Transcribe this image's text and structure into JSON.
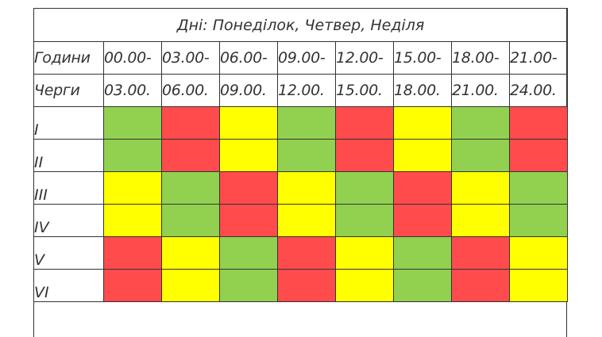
{
  "title": "Дні: Понеділок, Четвер, Неділя",
  "header": {
    "hours_label": "Години",
    "queues_label": "Черги",
    "slot_starts": [
      "00.00-",
      "03.00-",
      "06.00-",
      "09.00-",
      "12.00-",
      "15.00-",
      "18.00-",
      "21.00-"
    ],
    "slot_ends": [
      "03.00.",
      "06.00.",
      "09.00.",
      "12.00.",
      "15.00.",
      "18.00.",
      "21.00.",
      "24.00."
    ]
  },
  "colors": {
    "green": "#92d050",
    "red": "#ff4b4b",
    "yellow": "#ffff00"
  },
  "rows": [
    {
      "label": "I",
      "cells": [
        "green",
        "red",
        "yellow",
        "green",
        "red",
        "yellow",
        "green",
        "red"
      ]
    },
    {
      "label": "II",
      "cells": [
        "green",
        "red",
        "yellow",
        "green",
        "red",
        "yellow",
        "green",
        "red"
      ]
    },
    {
      "label": "III",
      "cells": [
        "yellow",
        "green",
        "red",
        "yellow",
        "green",
        "red",
        "yellow",
        "green"
      ]
    },
    {
      "label": "IV",
      "cells": [
        "yellow",
        "green",
        "red",
        "yellow",
        "green",
        "red",
        "yellow",
        "green"
      ]
    },
    {
      "label": "V",
      "cells": [
        "red",
        "yellow",
        "green",
        "red",
        "yellow",
        "green",
        "red",
        "yellow"
      ]
    },
    {
      "label": "VI",
      "cells": [
        "red",
        "yellow",
        "green",
        "red",
        "yellow",
        "green",
        "red",
        "yellow"
      ]
    }
  ]
}
